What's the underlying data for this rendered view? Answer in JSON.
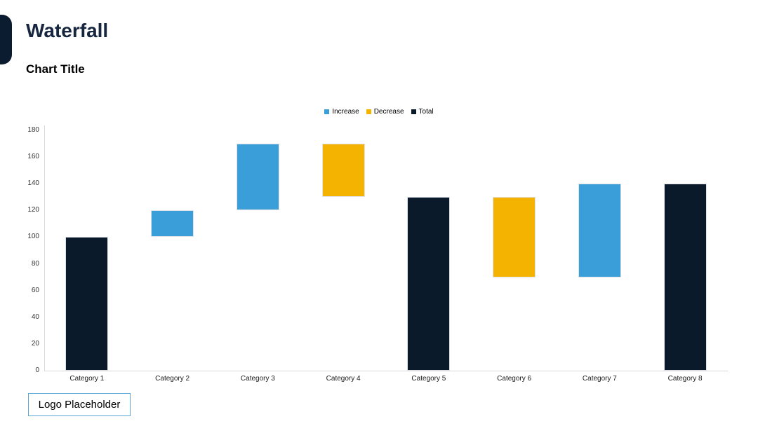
{
  "header": {
    "title": "Waterfall"
  },
  "chart": {
    "title": "Chart Title"
  },
  "chart_data": {
    "type": "bar",
    "subtype": "waterfall",
    "title": "Chart Title",
    "categories": [
      "Category 1",
      "Category 2",
      "Category 3",
      "Category 4",
      "Category 5",
      "Category 6",
      "Category 7",
      "Category 8"
    ],
    "legend": [
      {
        "label": "Increase",
        "color": "#3a9ed9"
      },
      {
        "label": "Decrease",
        "color": "#f5b301"
      },
      {
        "label": "Total",
        "color": "#0a1a2b"
      }
    ],
    "bars": [
      {
        "category": "Category 1",
        "segment": "Total",
        "start": 0,
        "end": 100
      },
      {
        "category": "Category 2",
        "segment": "Increase",
        "start": 100,
        "end": 120
      },
      {
        "category": "Category 3",
        "segment": "Increase",
        "start": 120,
        "end": 170
      },
      {
        "category": "Category 4",
        "segment": "Decrease",
        "start": 170,
        "end": 130
      },
      {
        "category": "Category 5",
        "segment": "Total",
        "start": 0,
        "end": 130
      },
      {
        "category": "Category 6",
        "segment": "Decrease",
        "start": 130,
        "end": 70
      },
      {
        "category": "Category 7",
        "segment": "Increase",
        "start": 70,
        "end": 140
      },
      {
        "category": "Category 8",
        "segment": "Total",
        "start": 0,
        "end": 140
      }
    ],
    "ylim": [
      0,
      180
    ],
    "yticks": [
      0,
      20,
      40,
      60,
      80,
      100,
      120,
      140,
      160,
      180
    ],
    "grid": false,
    "legend_position": "top-center"
  },
  "footer": {
    "logo_label": "Logo Placeholder"
  }
}
